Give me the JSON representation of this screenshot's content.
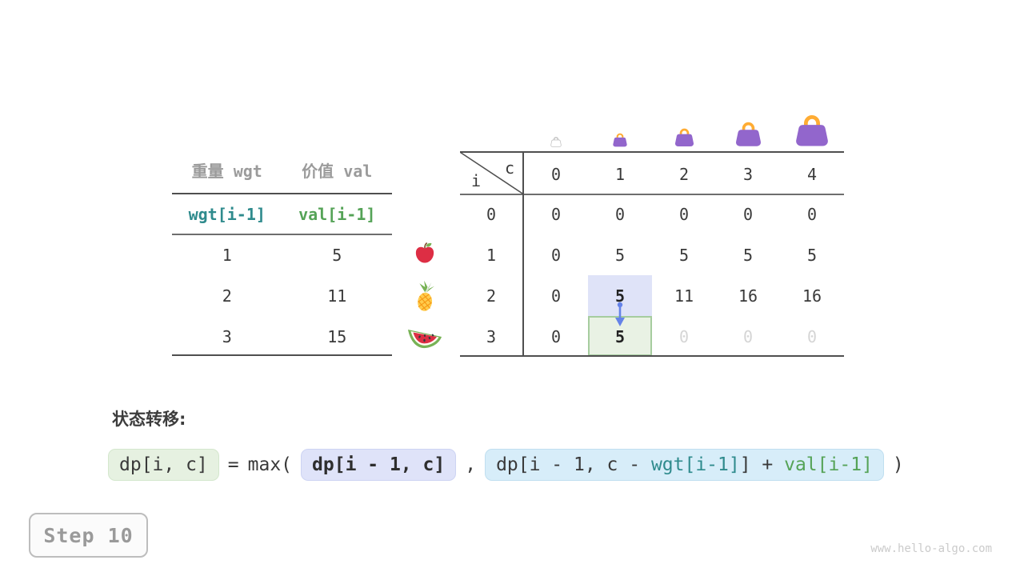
{
  "items_table": {
    "col1_header": "重量 wgt",
    "col2_header": "价值 val",
    "var_row": [
      "wgt[i-1]",
      "val[i-1]"
    ],
    "rows": [
      [
        "1",
        "5"
      ],
      [
        "2",
        "11"
      ],
      [
        "3",
        "15"
      ]
    ],
    "fruits": [
      "apple",
      "pineapple",
      "watermelon"
    ]
  },
  "dp_table": {
    "corner": {
      "row_var": "i",
      "col_var": "c"
    },
    "col_headers": [
      "0",
      "1",
      "2",
      "3",
      "4"
    ],
    "row_headers": [
      "0",
      "1",
      "2",
      "3"
    ],
    "cells": [
      [
        "0",
        "0",
        "0",
        "0",
        "0"
      ],
      [
        "0",
        "5",
        "5",
        "5",
        "5"
      ],
      [
        "0",
        "5",
        "11",
        "16",
        "16"
      ],
      [
        "0",
        "5",
        "0",
        "0",
        "0"
      ]
    ],
    "highlight_blue_cell": {
      "row": 2,
      "col": 1,
      "value": "5"
    },
    "highlight_green_cell": {
      "row": 3,
      "col": 1,
      "value": "5"
    },
    "ghost_cells": [
      [
        3,
        2
      ],
      [
        3,
        3
      ],
      [
        3,
        4
      ]
    ],
    "bags": {
      "capacities": [
        "0",
        "1",
        "2",
        "3",
        "4"
      ],
      "ghost_index": 0
    }
  },
  "formula": {
    "label": "状态转移:",
    "lhs": "dp[i, c]",
    "equals": "=",
    "max_open": "max(",
    "arg1": "dp[i - 1, c]",
    "comma": ",",
    "arg2_parts": [
      {
        "text": "dp[i - 1, c - ",
        "color": "default"
      },
      {
        "text": "wgt[i-1]",
        "color": "teal"
      },
      {
        "text": "] + ",
        "color": "default"
      },
      {
        "text": "val[i-1]",
        "color": "green"
      }
    ],
    "close_paren": ")"
  },
  "step_badge": "Step 10",
  "watermark": "www.hello-algo.com",
  "colors": {
    "line": "#4f4f4f",
    "header_gray": "#9b9b9b",
    "teal": "#2f8b8d",
    "green": "#55a357",
    "blue_highlight_bg": "#dfe3f8",
    "green_highlight_bg": "#e9f2e4",
    "green_highlight_border": "#a6cc9f",
    "blue_pill_bg": "#d7edf9",
    "arrow_blue": "#6583e8",
    "bag_body": "#9266CC",
    "bag_handle": "#FFAC33",
    "apple_red": "#DD2E44",
    "leaf_green": "#77B255",
    "pineapple_yellow": "#FFCC4D",
    "ghost_text": "#d5d5d5"
  }
}
